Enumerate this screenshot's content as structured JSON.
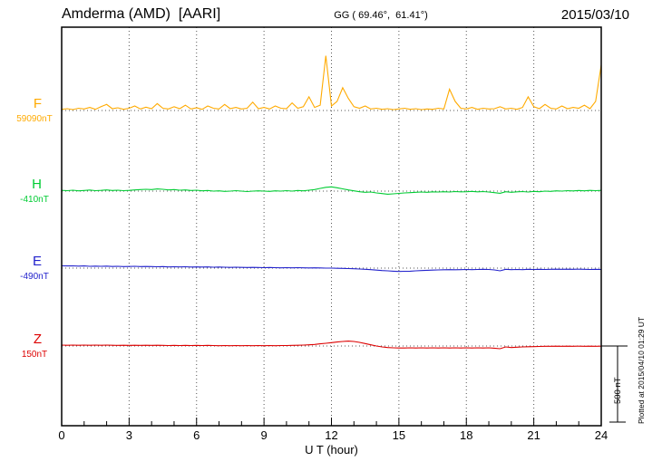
{
  "header": {
    "station_title": "Amderma (AMD)  [AARI]",
    "coords": "GG ( 69.46°,  61.41°)",
    "date": "2015/03/10"
  },
  "footer": {
    "xlabel": "U T (hour)"
  },
  "right_margin": {
    "plotted_note": "Plotted at 2015/04/10 01:29 UT",
    "scale_label": "500 nT"
  },
  "chart_data": {
    "type": "line",
    "title": "Amderma (AMD) [AARI] magnetogram 2015/03/10",
    "xlabel": "U T (hour)",
    "x_range": [
      0,
      24
    ],
    "x_ticks": [
      0,
      3,
      6,
      9,
      12,
      15,
      18,
      21,
      24
    ],
    "sample_interval_hours": 0.25,
    "scale_bar_nT": 500,
    "grid": "dotted vertical lines every 3 hours; dotted horizontal baseline per trace",
    "legend_position": "left margin, one colored label per trace",
    "series": [
      {
        "name": "F",
        "baseline_label": "59090nT",
        "baseline_nT": 59090,
        "color": "#FFAA00",
        "values_unit": "nT deviation from baseline",
        "values": [
          8,
          12,
          6,
          15,
          10,
          20,
          8,
          25,
          40,
          12,
          18,
          8,
          15,
          30,
          10,
          22,
          12,
          45,
          15,
          10,
          25,
          12,
          35,
          10,
          18,
          8,
          30,
          15,
          10,
          40,
          12,
          20,
          10,
          15,
          55,
          12,
          20,
          10,
          30,
          15,
          12,
          50,
          15,
          25,
          90,
          20,
          35,
          360,
          30,
          60,
          150,
          80,
          25,
          15,
          30,
          10,
          15,
          8,
          12,
          6,
          10,
          15,
          8,
          12,
          6,
          10,
          8,
          15,
          10,
          140,
          60,
          15,
          10,
          20,
          8,
          15,
          10,
          12,
          25,
          10,
          15,
          8,
          20,
          90,
          25,
          12,
          40,
          15,
          10,
          30,
          12,
          20,
          15,
          35,
          12,
          60,
          300
        ]
      },
      {
        "name": "H",
        "baseline_label": "-410nT",
        "baseline_nT": -410,
        "color": "#00CC33",
        "values_unit": "nT deviation from baseline",
        "values": [
          5,
          3,
          6,
          2,
          4,
          7,
          3,
          5,
          8,
          4,
          6,
          3,
          5,
          8,
          10,
          12,
          10,
          14,
          12,
          8,
          10,
          6,
          8,
          4,
          6,
          2,
          4,
          0,
          2,
          -2,
          0,
          3,
          0,
          -3,
          0,
          2,
          0,
          -2,
          2,
          0,
          3,
          0,
          4,
          2,
          6,
          10,
          18,
          25,
          28,
          22,
          15,
          8,
          2,
          -4,
          -8,
          -6,
          -12,
          -16,
          -20,
          -18,
          -15,
          -12,
          -10,
          -8,
          -6,
          -8,
          -5,
          -6,
          -4,
          -6,
          -3,
          -5,
          -4,
          -2,
          -5,
          -3,
          -6,
          -10,
          -14,
          -4,
          -8,
          -5,
          -3,
          -6,
          -2,
          -4,
          0,
          -2,
          2,
          0,
          3,
          1,
          4,
          2,
          5,
          3,
          5
        ]
      },
      {
        "name": "E",
        "baseline_label": "-490nT",
        "baseline_nT": -490,
        "color": "#2222CC",
        "values_unit": "nT deviation from baseline",
        "values": [
          15,
          14,
          15,
          13,
          14,
          12,
          13,
          12,
          13,
          11,
          12,
          10,
          11,
          12,
          10,
          11,
          10,
          9,
          10,
          8,
          9,
          8,
          9,
          7,
          8,
          7,
          8,
          6,
          7,
          6,
          5,
          6,
          5,
          4,
          5,
          4,
          3,
          4,
          3,
          2,
          3,
          2,
          3,
          2,
          1,
          2,
          1,
          0,
          0,
          -1,
          -2,
          -3,
          -4,
          -6,
          -8,
          -10,
          -13,
          -16,
          -18,
          -20,
          -22,
          -21,
          -20,
          -18,
          -16,
          -14,
          -13,
          -12,
          -11,
          -10,
          -11,
          -10,
          -9,
          -10,
          -9,
          -8,
          -9,
          -12,
          -18,
          -8,
          -10,
          -9,
          -10,
          -8,
          -9,
          -8,
          -9,
          -8,
          -7,
          -8,
          -7,
          -8,
          -7,
          -8,
          -9,
          -8,
          -9
        ]
      },
      {
        "name": "Z",
        "baseline_label": "150nT",
        "baseline_nT": 150,
        "color": "#DD0000",
        "values_unit": "nT deviation from baseline",
        "values": [
          6,
          5,
          6,
          5,
          6,
          5,
          6,
          5,
          6,
          5,
          4,
          5,
          4,
          5,
          4,
          5,
          4,
          5,
          4,
          3,
          4,
          3,
          4,
          3,
          4,
          3,
          4,
          3,
          2,
          3,
          2,
          3,
          2,
          3,
          2,
          3,
          2,
          3,
          2,
          3,
          3,
          4,
          5,
          6,
          8,
          10,
          14,
          18,
          22,
          26,
          30,
          32,
          30,
          24,
          16,
          8,
          0,
          -6,
          -10,
          -12,
          -13,
          -13,
          -12,
          -13,
          -12,
          -13,
          -12,
          -13,
          -12,
          -13,
          -12,
          -13,
          -12,
          -13,
          -12,
          -13,
          -12,
          -14,
          -18,
          -6,
          -10,
          -8,
          -6,
          -5,
          -4,
          -3,
          -2,
          -2,
          -1,
          -2,
          -1,
          -2,
          -1,
          -2,
          -1,
          -2,
          -1
        ]
      }
    ]
  }
}
